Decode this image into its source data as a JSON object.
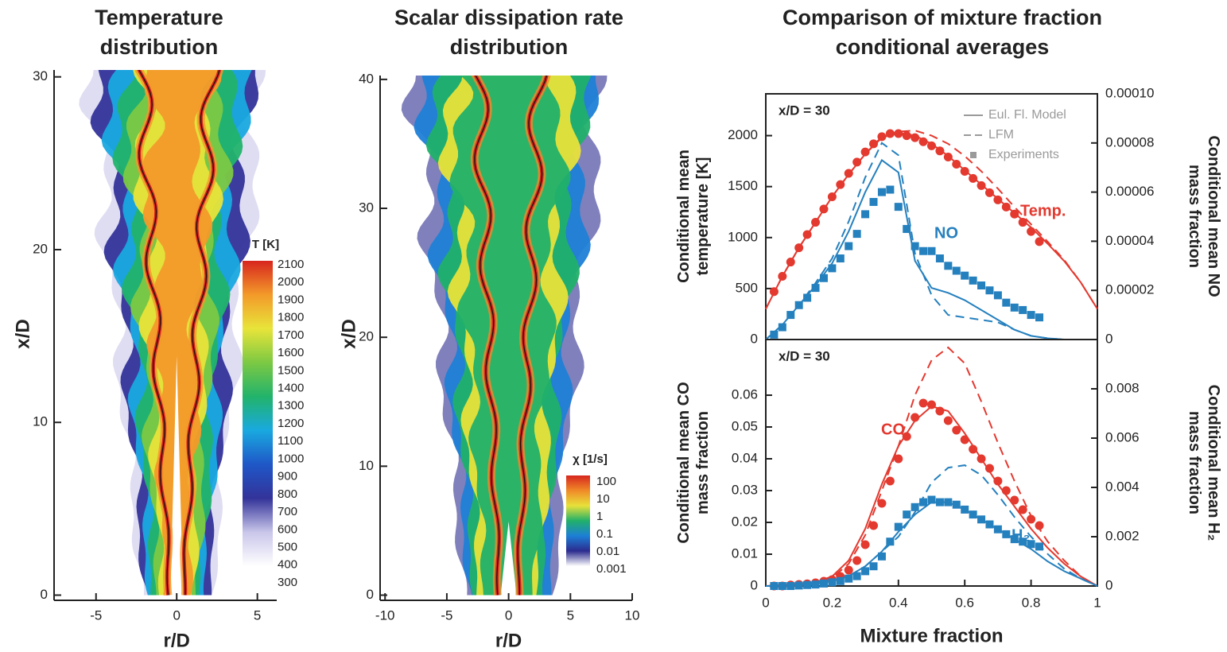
{
  "chart_data": [
    {
      "type": "contour",
      "title": "Temperature distribution",
      "xlabel": "r/D",
      "ylabel": "x/D",
      "xlim": [
        -7.6,
        6.2
      ],
      "ylim": [
        -0.3,
        30.4
      ],
      "xticks": [
        -5,
        0,
        5
      ],
      "yticks": [
        0,
        10,
        20,
        30
      ],
      "colorbar": {
        "label": "T [K]",
        "ticks": [
          300,
          400,
          500,
          600,
          700,
          800,
          900,
          1000,
          1100,
          1200,
          1300,
          1400,
          1500,
          1600,
          1700,
          1800,
          1900,
          2000,
          2100
        ],
        "lim": [
          300,
          2100
        ],
        "log": false,
        "colors": [
          "#ffffff",
          "#c9c6ea",
          "#33339a",
          "#1f57c7",
          "#19a9e0",
          "#22b36b",
          "#7cc943",
          "#e8e43a",
          "#f39a2a",
          "#d7261e"
        ]
      }
    },
    {
      "type": "contour",
      "title": "Scalar dissipation rate distribution",
      "xlabel": "r/D",
      "ylabel": "x/D",
      "xlim": [
        -10.4,
        10
      ],
      "ylim": [
        -0.4,
        40.3
      ],
      "xticks": [
        -10,
        -5,
        0,
        5,
        10
      ],
      "yticks": [
        0,
        10,
        20,
        30,
        40
      ],
      "colorbar": {
        "label": "χ [1/s]",
        "ticks": [
          0.001,
          0.01,
          0.1,
          1,
          10,
          100
        ],
        "lim": [
          0.001,
          100
        ],
        "log": true,
        "colors": [
          "#ffffff",
          "#2c2c8f",
          "#1d7fd6",
          "#21b06a",
          "#e8e13a",
          "#f08a28",
          "#d7261e"
        ]
      }
    },
    {
      "type": "line",
      "title": "Comparison of mixture fraction conditional averages",
      "annotation": "x/D = 30",
      "ylabel": "Conditional mean temperature [K]",
      "y2label": "Conditional mean NO mass fraction",
      "xlim": [
        0,
        1
      ],
      "ylim": [
        0,
        2410
      ],
      "yticks": [
        0,
        500,
        1000,
        1500,
        2000
      ],
      "y2lim": [
        0,
        0.0001
      ],
      "y2ticks": [
        0,
        2e-05,
        4e-05,
        6e-05,
        8e-05,
        {
          "value": 0.0001,
          "label": "0.00010"
        }
      ],
      "legend": [
        {
          "name": "Eul. Fl. Model",
          "dash": "solid"
        },
        {
          "name": "LFM",
          "dash": "dashed"
        },
        {
          "name": "Experiments",
          "marker": "square"
        }
      ],
      "legend_color": "#9a9a9a",
      "x": [
        0,
        0.05,
        0.1,
        0.15,
        0.2,
        0.25,
        0.3,
        0.35,
        0.4,
        0.45,
        0.5,
        0.55,
        0.6,
        0.65,
        0.7,
        0.75,
        0.8,
        0.85,
        0.9,
        0.95,
        1
      ],
      "experiment_x": [
        0.025,
        0.05,
        0.075,
        0.1,
        0.125,
        0.15,
        0.175,
        0.2,
        0.225,
        0.25,
        0.275,
        0.3,
        0.325,
        0.35,
        0.375,
        0.4,
        0.425,
        0.45,
        0.475,
        0.5,
        0.525,
        0.55,
        0.575,
        0.6,
        0.625,
        0.65,
        0.675,
        0.7,
        0.725,
        0.75,
        0.775,
        0.8,
        0.825
      ],
      "species": [
        {
          "name": "Temp.",
          "color": "#e3392f",
          "axis": "y",
          "marker": "circle",
          "lines": [
            [
              300,
              620,
              900,
              1150,
              1400,
              1620,
              1820,
              1980,
              2030,
              2000,
              1920,
              1800,
              1660,
              1520,
              1380,
              1240,
              1100,
              940,
              770,
              560,
              300
            ],
            [
              300,
              620,
              900,
              1150,
              1400,
              1620,
              1820,
              1990,
              2040,
              2050,
              2000,
              1920,
              1800,
              1650,
              1480,
              1300,
              1130,
              960,
              780,
              560,
              300
            ]
          ],
          "experiments": [
            470,
            620,
            760,
            900,
            1030,
            1150,
            1280,
            1400,
            1520,
            1630,
            1740,
            1840,
            1920,
            1990,
            2020,
            2020,
            2000,
            1980,
            1940,
            1900,
            1850,
            1790,
            1720,
            1650,
            1580,
            1510,
            1440,
            1370,
            1300,
            1230,
            1150,
            1060,
            960
          ]
        },
        {
          "name": "NO",
          "color": "#2580be",
          "axis": "y2",
          "marker": "square",
          "lines": [
            [
              0,
              6e-06,
              1.4e-05,
              2.2e-05,
              3.1e-05,
              4.4e-05,
              6e-05,
              7.3e-05,
              6.8e-05,
              3.2e-05,
              2.1e-05,
              1.9e-05,
              1.6e-05,
              1.2e-05,
              8e-06,
              4e-06,
              1.5e-06,
              5e-07,
              0,
              0,
              0
            ],
            [
              0,
              6e-06,
              1.4e-05,
              2.3e-05,
              3.3e-05,
              4.8e-05,
              6.6e-05,
              8e-05,
              7.5e-05,
              3.5e-05,
              1.8e-05,
              1e-05,
              9e-06,
              8e-06,
              7e-06,
              4e-06,
              1.5e-06,
              5e-07,
              0,
              0,
              0
            ]
          ],
          "experiments": [
            2e-06,
            5e-06,
            1e-05,
            1.4e-05,
            1.7e-05,
            2.1e-05,
            2.5e-05,
            2.9e-05,
            3.3e-05,
            3.8e-05,
            4.3e-05,
            5.1e-05,
            5.6e-05,
            6e-05,
            6.1e-05,
            5.4e-05,
            4.5e-05,
            3.8e-05,
            3.6e-05,
            3.6e-05,
            3.3e-05,
            3e-05,
            2.8e-05,
            2.6e-05,
            2.4e-05,
            2.2e-05,
            2e-05,
            1.8e-05,
            1.5e-05,
            1.3e-05,
            1.2e-05,
            1e-05,
            9e-06
          ]
        }
      ]
    },
    {
      "type": "line",
      "annotation": "x/D = 30",
      "xlabel": "Mixture fraction",
      "ylabel": "Conditional mean CO mass fraction",
      "y2label": "Conditional mean H₂ mass fraction",
      "xlim": [
        0,
        1
      ],
      "xticks": [
        0,
        0.2,
        0.4,
        0.6,
        0.8,
        1
      ],
      "ylim": [
        0,
        0.0775
      ],
      "yticks": [
        0,
        0.01,
        0.02,
        0.03,
        0.04,
        0.05,
        0.06
      ],
      "y2lim": [
        0,
        0.01
      ],
      "y2ticks": [
        0,
        0.002,
        0.004,
        0.006,
        0.008
      ],
      "x": [
        0,
        0.05,
        0.1,
        0.15,
        0.2,
        0.25,
        0.3,
        0.35,
        0.4,
        0.45,
        0.5,
        0.55,
        0.6,
        0.65,
        0.7,
        0.75,
        0.8,
        0.85,
        0.9,
        0.95,
        1
      ],
      "experiment_x": [
        0.025,
        0.05,
        0.075,
        0.1,
        0.125,
        0.15,
        0.175,
        0.2,
        0.225,
        0.25,
        0.275,
        0.3,
        0.325,
        0.35,
        0.375,
        0.4,
        0.425,
        0.45,
        0.475,
        0.5,
        0.525,
        0.55,
        0.575,
        0.6,
        0.625,
        0.65,
        0.675,
        0.7,
        0.725,
        0.75,
        0.775,
        0.8,
        0.825
      ],
      "species": [
        {
          "name": "CO",
          "color": "#e3392f",
          "axis": "y",
          "marker": "circle",
          "lines": [
            [
              0,
              0.0002,
              0.0005,
              0.0012,
              0.003,
              0.008,
              0.018,
              0.032,
              0.044,
              0.052,
              0.0565,
              0.055,
              0.048,
              0.04,
              0.032,
              0.025,
              0.018,
              0.012,
              0.007,
              0.003,
              0
            ],
            [
              0,
              0.0002,
              0.0005,
              0.001,
              0.0025,
              0.007,
              0.016,
              0.03,
              0.044,
              0.06,
              0.071,
              0.075,
              0.07,
              0.058,
              0.045,
              0.033,
              0.022,
              0.014,
              0.008,
              0.003,
              0
            ]
          ],
          "experiments": [
            0,
            0,
            0.0003,
            0.0005,
            0.0007,
            0.001,
            0.0015,
            0.002,
            0.003,
            0.005,
            0.008,
            0.013,
            0.019,
            0.026,
            0.033,
            0.04,
            0.047,
            0.053,
            0.0575,
            0.057,
            0.055,
            0.052,
            0.049,
            0.046,
            0.043,
            0.04,
            0.037,
            0.033,
            0.03,
            0.027,
            0.024,
            0.021,
            0.019
          ]
        },
        {
          "name": "H₂",
          "color": "#2580be",
          "axis": "y2",
          "marker": "square",
          "lines": [
            [
              0,
              0,
              5e-05,
              0.0001,
              0.0002,
              0.0004,
              0.0008,
              0.0014,
              0.0022,
              0.0029,
              0.0034,
              0.0034,
              0.0031,
              0.0027,
              0.0023,
              0.0019,
              0.0015,
              0.001,
              0.0006,
              0.0003,
              0
            ],
            [
              0,
              0,
              5e-05,
              0.0001,
              0.0002,
              0.0004,
              0.0008,
              0.0014,
              0.002,
              0.003,
              0.0042,
              0.0048,
              0.0049,
              0.0045,
              0.0037,
              0.0028,
              0.002,
              0.0013,
              0.0007,
              0.0003,
              0
            ]
          ],
          "experiments": [
            0,
            0,
            0,
            2e-05,
            4e-05,
            6e-05,
            0.0001,
            0.00015,
            0.0002,
            0.0003,
            0.0004,
            0.0006,
            0.0008,
            0.0012,
            0.0018,
            0.0024,
            0.0029,
            0.0032,
            0.0034,
            0.0035,
            0.0034,
            0.0034,
            0.0033,
            0.0031,
            0.0029,
            0.0027,
            0.0025,
            0.0023,
            0.0021,
            0.0019,
            0.0018,
            0.0017,
            0.0016
          ]
        }
      ]
    }
  ]
}
